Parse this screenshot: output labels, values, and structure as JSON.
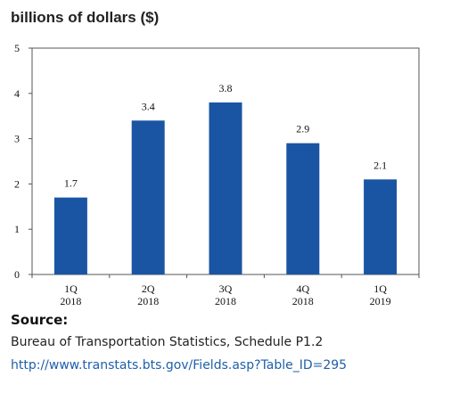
{
  "chart_data": {
    "type": "bar",
    "title": "billions of dollars ($)",
    "xlabel": "",
    "ylabel": "",
    "categories": [
      [
        "1Q",
        "2018"
      ],
      [
        "2Q",
        "2018"
      ],
      [
        "3Q",
        "2018"
      ],
      [
        "4Q",
        "2018"
      ],
      [
        "1Q",
        "2019"
      ]
    ],
    "values": [
      1.7,
      3.4,
      3.8,
      2.9,
      2.1
    ],
    "value_labels": [
      "1.7",
      "3.4",
      "3.8",
      "2.9",
      "2.1"
    ],
    "ylim": [
      0,
      5
    ],
    "yticks": [
      "0",
      "1",
      "2",
      "3",
      "4",
      "5"
    ],
    "grid": false,
    "bar_color": "#1a55a3"
  },
  "source": {
    "heading": "Source:",
    "text": "Bureau of Transportation Statistics, Schedule P1.2",
    "link": "http://www.transtats.bts.gov/Fields.asp?Table_ID=295"
  }
}
